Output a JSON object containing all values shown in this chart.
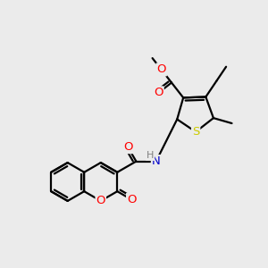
{
  "background_color": "#ebebeb",
  "atom_colors": {
    "O": "#ff0000",
    "N": "#0000cc",
    "S": "#cccc00",
    "H": "#808080"
  },
  "bond_color": "#000000",
  "bond_width": 1.6,
  "font_size": 9.5
}
